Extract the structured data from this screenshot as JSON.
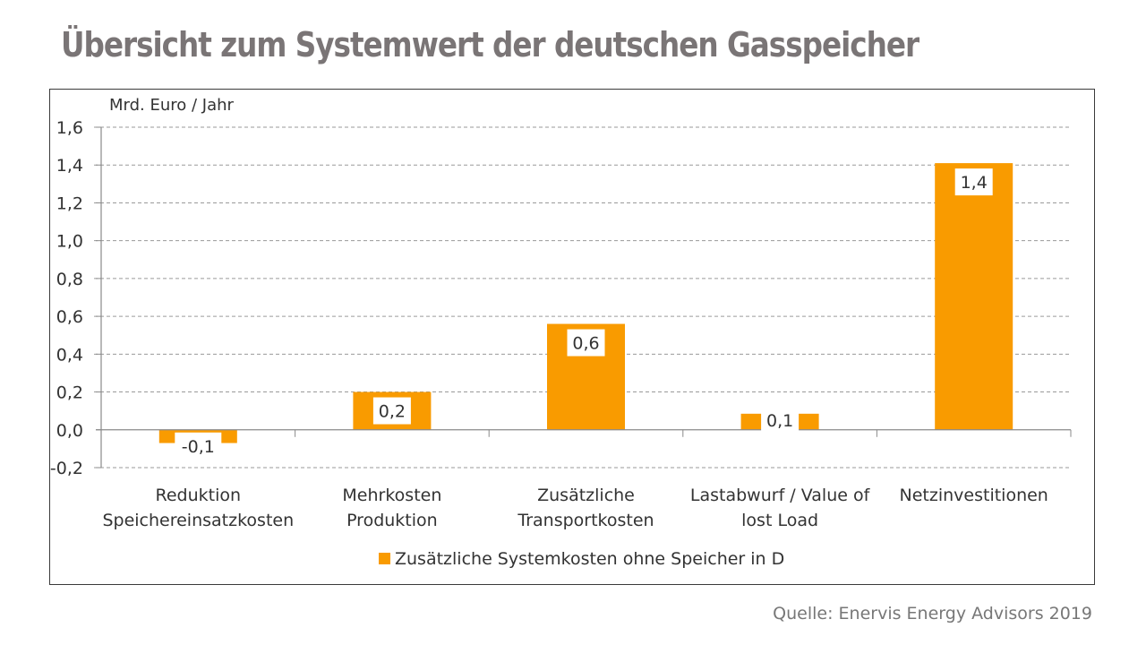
{
  "page": {
    "title": "Übersicht zum Systemwert der deutschen Gasspeicher",
    "source": "Quelle: Enervis Energy Advisors 2019"
  },
  "colors": {
    "bar": "#f99b00",
    "grid": "#9a9a9a",
    "axis": "#8a8a8a",
    "text": "#333333",
    "title": "#7a7576"
  },
  "chart_data": {
    "type": "bar",
    "title": "Übersicht zum Systemwert der deutschen Gasspeicher",
    "ylabel": "Mrd. Euro / Jahr",
    "xlabel": "",
    "ylim": [
      -0.2,
      1.6
    ],
    "yticks": [
      -0.2,
      0.0,
      0.2,
      0.4,
      0.6,
      0.8,
      1.0,
      1.2,
      1.4,
      1.6
    ],
    "ytick_labels": [
      "-0,2",
      "0,0",
      "0,2",
      "0,4",
      "0,6",
      "0,8",
      "1,0",
      "1,2",
      "1,4",
      "1,6"
    ],
    "grid": true,
    "grid_style": "dashed-horizontal",
    "categories": [
      [
        "Reduktion",
        "Speichereinsatzkosten"
      ],
      [
        "Mehrkosten",
        "Produktion"
      ],
      [
        "Zusätzliche",
        "Transportkosten"
      ],
      [
        "Lastabwurf / Value of",
        "lost Load"
      ],
      [
        "Netzinvestitionen"
      ]
    ],
    "series": [
      {
        "name": "Zusätzliche Systemkosten ohne Speicher in D",
        "values": [
          -0.07,
          0.2,
          0.56,
          0.085,
          1.41
        ],
        "data_labels": [
          "-0,1",
          "0,2",
          "0,6",
          "0,1",
          "1,4"
        ]
      }
    ],
    "legend": {
      "position": "bottom-center",
      "entries": [
        "Zusätzliche Systemkosten ohne Speicher in D"
      ]
    }
  }
}
